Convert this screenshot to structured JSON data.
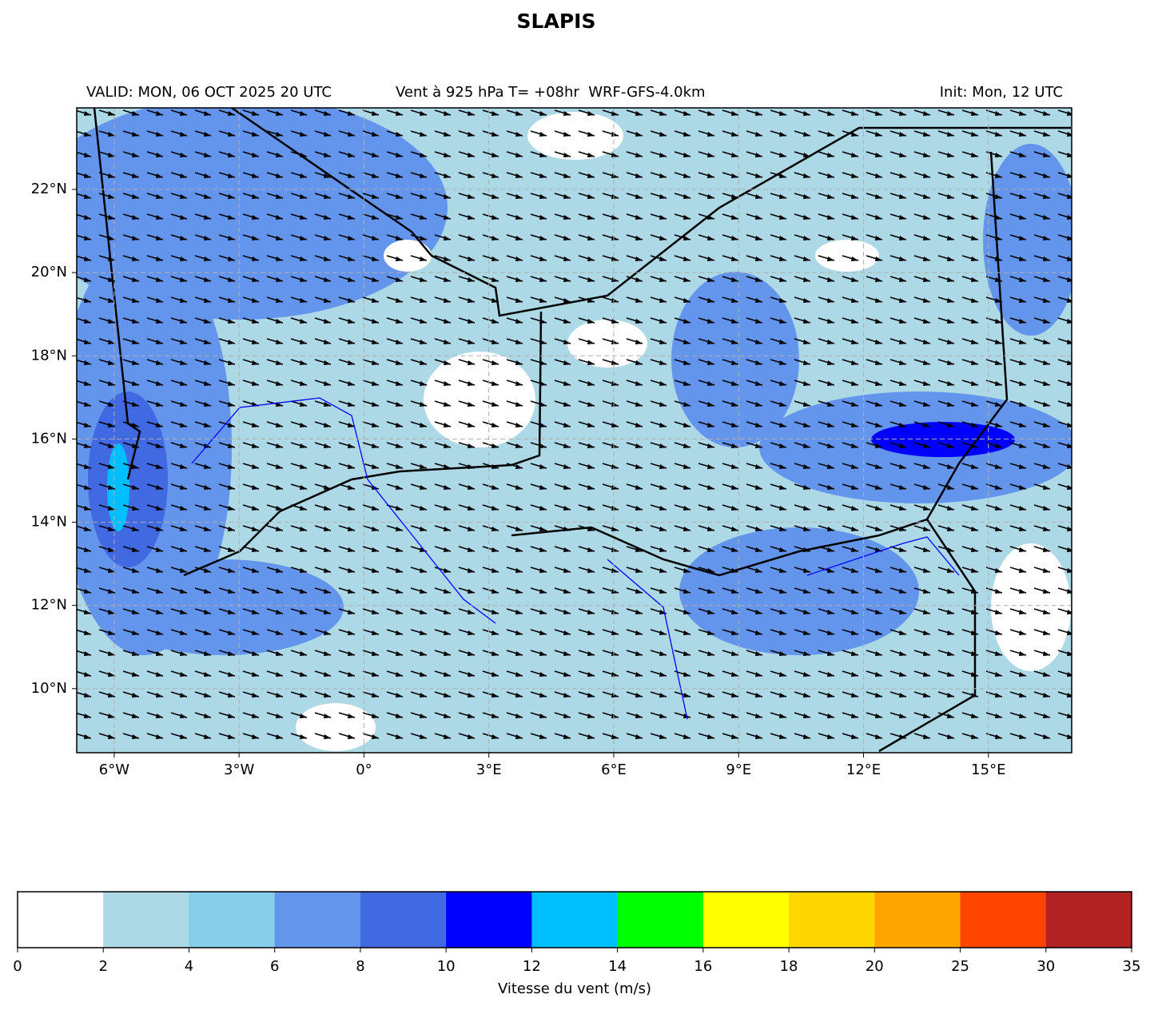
{
  "title": "SLAPIS",
  "header": {
    "left": "VALID: MON, 06 OCT 2025 20 UTC",
    "center": "Vent à 925 hPa T= +08hr  WRF-GFS-4.0km",
    "right": "Init: Mon, 12 UTC"
  },
  "map": {
    "type": "map",
    "xlim": [
      -6.9,
      17.0
    ],
    "ylim": [
      8.46,
      23.96
    ],
    "grid": true,
    "xticks": [
      {
        "value": -6,
        "label": "6°W"
      },
      {
        "value": -3,
        "label": "3°W"
      },
      {
        "value": 0,
        "label": "0°"
      },
      {
        "value": 3,
        "label": "3°E"
      },
      {
        "value": 6,
        "label": "6°E"
      },
      {
        "value": 9,
        "label": "9°E"
      },
      {
        "value": 12,
        "label": "12°E"
      },
      {
        "value": 15,
        "label": "15°E"
      }
    ],
    "yticks": [
      {
        "value": 10,
        "label": "10°N"
      },
      {
        "value": 12,
        "label": "12°N"
      },
      {
        "value": 14,
        "label": "14°N"
      },
      {
        "value": 16,
        "label": "16°N"
      },
      {
        "value": 18,
        "label": "18°N"
      },
      {
        "value": 20,
        "label": "20°N"
      },
      {
        "value": 22,
        "label": "22°N"
      }
    ]
  },
  "colorbar": {
    "bounds": [
      0,
      2,
      4,
      6,
      8,
      10,
      12,
      14,
      16,
      18,
      20,
      25,
      30,
      35
    ],
    "colors": [
      "#ffffff",
      "#add8e6",
      "#87ceeb",
      "#6495ed",
      "#4169e1",
      "#0000ff",
      "#00bfff",
      "#00ff00",
      "#ffff00",
      "#ffd700",
      "#ffa500",
      "#ff4500",
      "#b22222"
    ],
    "label": "Vitesse du vent (m/s)"
  }
}
